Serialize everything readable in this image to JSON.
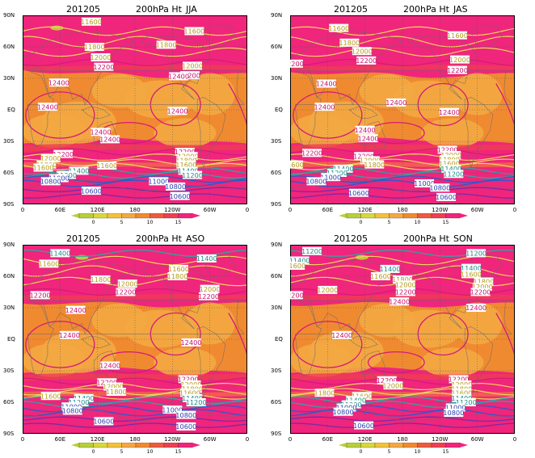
{
  "colors": {
    "bg_pink": "#f0257c",
    "orange": "#f08a30",
    "orange_light": "#f3a843",
    "red": "#ee3f50",
    "yellow_green": "#c9d43a",
    "contour_yellow": "#efd65a",
    "contour_pink": "#d6197a",
    "contour_teal": "#2ca6a4",
    "contour_blue": "#2a5cc9",
    "contour_purple": "#7a2aa6",
    "coast": "#6a6a6a"
  },
  "lat_labels": [
    "90N",
    "60N",
    "30N",
    "EQ",
    "30S",
    "60S",
    "90S"
  ],
  "lon_labels": [
    "0",
    "60E",
    "120E",
    "180",
    "120W",
    "60W",
    "0"
  ],
  "colorbar": {
    "ticks": [
      "0",
      "5",
      "10",
      "15",
      "20"
    ]
  },
  "panels": [
    {
      "date": "201205",
      "variable": "200hPa Ht",
      "season": "JJA",
      "labels": [
        {
          "text": "11600",
          "lon": 110,
          "lat": 84,
          "color": "yellow"
        },
        {
          "text": "11600",
          "lon": 275,
          "lat": 75,
          "color": "yellow"
        },
        {
          "text": "11800",
          "lon": 115,
          "lat": 60,
          "color": "yellow"
        },
        {
          "text": "11800",
          "lon": 230,
          "lat": 62,
          "color": "yellow"
        },
        {
          "text": "12000",
          "lon": 125,
          "lat": 50,
          "color": "yellow"
        },
        {
          "text": "12200",
          "lon": 130,
          "lat": 41,
          "color": "pink"
        },
        {
          "text": "12000",
          "lon": 272,
          "lat": 42,
          "color": "yellow"
        },
        {
          "text": "12200",
          "lon": 268,
          "lat": 33,
          "color": "pink"
        },
        {
          "text": "12400",
          "lon": 250,
          "lat": 32,
          "color": "pink"
        },
        {
          "text": "12400",
          "lon": 58,
          "lat": 26,
          "color": "pink"
        },
        {
          "text": "12400",
          "lon": 40,
          "lat": 3,
          "color": "pink"
        },
        {
          "text": "12400",
          "lon": 248,
          "lat": -1,
          "color": "pink"
        },
        {
          "text": "12400",
          "lon": 125,
          "lat": -21,
          "color": "pink"
        },
        {
          "text": "12400",
          "lon": 140,
          "lat": -28,
          "color": "pink"
        },
        {
          "text": "12200",
          "lon": 65,
          "lat": -42,
          "color": "pink"
        },
        {
          "text": "12000",
          "lon": 45,
          "lat": -46,
          "color": "yellow"
        },
        {
          "text": "11800",
          "lon": 38,
          "lat": -52,
          "color": "yellow"
        },
        {
          "text": "11600",
          "lon": 33,
          "lat": -55,
          "color": "yellow"
        },
        {
          "text": "11400",
          "lon": 90,
          "lat": -58,
          "color": "teal"
        },
        {
          "text": "11200",
          "lon": 70,
          "lat": -62,
          "color": "teal"
        },
        {
          "text": "11000",
          "lon": 58,
          "lat": -65,
          "color": "blue"
        },
        {
          "text": "10800",
          "lon": 45,
          "lat": -68,
          "color": "blue"
        },
        {
          "text": "11600",
          "lon": 135,
          "lat": -53,
          "color": "yellow"
        },
        {
          "text": "12200",
          "lon": 260,
          "lat": -40,
          "color": "pink"
        },
        {
          "text": "12000",
          "lon": 265,
          "lat": -44,
          "color": "yellow"
        },
        {
          "text": "11800",
          "lon": 262,
          "lat": -48,
          "color": "yellow"
        },
        {
          "text": "11600",
          "lon": 262,
          "lat": -52,
          "color": "yellow"
        },
        {
          "text": "11400",
          "lon": 265,
          "lat": -58,
          "color": "teal"
        },
        {
          "text": "11200",
          "lon": 272,
          "lat": -62,
          "color": "teal"
        },
        {
          "text": "11000",
          "lon": 218,
          "lat": -68,
          "color": "blue"
        },
        {
          "text": "10800",
          "lon": 245,
          "lat": -73,
          "color": "blue"
        },
        {
          "text": "10600",
          "lon": 110,
          "lat": -77,
          "color": "blue"
        },
        {
          "text": "10600",
          "lon": 252,
          "lat": -82,
          "color": "blue"
        }
      ]
    },
    {
      "date": "201205",
      "variable": "200hPa Ht",
      "season": "JAS",
      "labels": [
        {
          "text": "11600",
          "lon": 78,
          "lat": 78,
          "color": "yellow"
        },
        {
          "text": "11600",
          "lon": 268,
          "lat": 71,
          "color": "yellow"
        },
        {
          "text": "11800",
          "lon": 95,
          "lat": 64,
          "color": "yellow"
        },
        {
          "text": "12000",
          "lon": 115,
          "lat": 56,
          "color": "yellow"
        },
        {
          "text": "12200",
          "lon": 122,
          "lat": 47,
          "color": "pink"
        },
        {
          "text": "12200",
          "lon": 5,
          "lat": 44,
          "color": "pink"
        },
        {
          "text": "12000",
          "lon": 272,
          "lat": 48,
          "color": "yellow"
        },
        {
          "text": "12200",
          "lon": 268,
          "lat": 38,
          "color": "pink"
        },
        {
          "text": "12400",
          "lon": 58,
          "lat": 25,
          "color": "pink"
        },
        {
          "text": "12400",
          "lon": 170,
          "lat": 7,
          "color": "pink"
        },
        {
          "text": "12400",
          "lon": 55,
          "lat": 3,
          "color": "pink"
        },
        {
          "text": "12400",
          "lon": 255,
          "lat": -2,
          "color": "pink"
        },
        {
          "text": "12400",
          "lon": 120,
          "lat": -19,
          "color": "pink"
        },
        {
          "text": "12400",
          "lon": 125,
          "lat": -27,
          "color": "pink"
        },
        {
          "text": "12200",
          "lon": 35,
          "lat": -41,
          "color": "pink"
        },
        {
          "text": "11600",
          "lon": 5,
          "lat": -52,
          "color": "yellow"
        },
        {
          "text": "12200",
          "lon": 118,
          "lat": -44,
          "color": "pink"
        },
        {
          "text": "12000",
          "lon": 128,
          "lat": -48,
          "color": "yellow"
        },
        {
          "text": "11800",
          "lon": 135,
          "lat": -52,
          "color": "yellow"
        },
        {
          "text": "11400",
          "lon": 85,
          "lat": -56,
          "color": "teal"
        },
        {
          "text": "11200",
          "lon": 75,
          "lat": -60,
          "color": "teal"
        },
        {
          "text": "11000",
          "lon": 65,
          "lat": -64,
          "color": "blue"
        },
        {
          "text": "10800",
          "lon": 42,
          "lat": -68,
          "color": "blue"
        },
        {
          "text": "12200",
          "lon": 252,
          "lat": -38,
          "color": "pink"
        },
        {
          "text": "12000",
          "lon": 258,
          "lat": -43,
          "color": "yellow"
        },
        {
          "text": "11800",
          "lon": 255,
          "lat": -47,
          "color": "yellow"
        },
        {
          "text": "11600",
          "lon": 255,
          "lat": -51,
          "color": "yellow"
        },
        {
          "text": "11400",
          "lon": 258,
          "lat": -56,
          "color": "teal"
        },
        {
          "text": "11200",
          "lon": 262,
          "lat": -61,
          "color": "teal"
        },
        {
          "text": "11000",
          "lon": 215,
          "lat": -70,
          "color": "blue"
        },
        {
          "text": "10800",
          "lon": 240,
          "lat": -74,
          "color": "blue"
        },
        {
          "text": "10600",
          "lon": 110,
          "lat": -79,
          "color": "blue"
        },
        {
          "text": "10600",
          "lon": 250,
          "lat": -83,
          "color": "blue"
        }
      ]
    },
    {
      "date": "201205",
      "variable": "200hPa Ht",
      "season": "ASO",
      "labels": [
        {
          "text": "11400",
          "lon": 60,
          "lat": 82,
          "color": "teal"
        },
        {
          "text": "11400",
          "lon": 295,
          "lat": 77,
          "color": "teal"
        },
        {
          "text": "11600",
          "lon": 42,
          "lat": 72,
          "color": "yellow"
        },
        {
          "text": "11600",
          "lon": 250,
          "lat": 67,
          "color": "yellow"
        },
        {
          "text": "11800",
          "lon": 125,
          "lat": 57,
          "color": "yellow"
        },
        {
          "text": "11800",
          "lon": 248,
          "lat": 60,
          "color": "yellow"
        },
        {
          "text": "12000",
          "lon": 168,
          "lat": 53,
          "color": "yellow"
        },
        {
          "text": "12200",
          "lon": 165,
          "lat": 45,
          "color": "pink"
        },
        {
          "text": "12000",
          "lon": 300,
          "lat": 48,
          "color": "yellow"
        },
        {
          "text": "12200",
          "lon": 298,
          "lat": 41,
          "color": "pink"
        },
        {
          "text": "12200",
          "lon": 28,
          "lat": 42,
          "color": "pink"
        },
        {
          "text": "12400",
          "lon": 85,
          "lat": 28,
          "color": "pink"
        },
        {
          "text": "12400",
          "lon": 75,
          "lat": 4,
          "color": "pink"
        },
        {
          "text": "12400",
          "lon": 270,
          "lat": -3,
          "color": "pink"
        },
        {
          "text": "12400",
          "lon": 140,
          "lat": -25,
          "color": "pink"
        },
        {
          "text": "12200",
          "lon": 135,
          "lat": -41,
          "color": "pink"
        },
        {
          "text": "12000",
          "lon": 145,
          "lat": -45,
          "color": "yellow"
        },
        {
          "text": "11800",
          "lon": 150,
          "lat": -50,
          "color": "yellow"
        },
        {
          "text": "11600",
          "lon": 45,
          "lat": -54,
          "color": "yellow"
        },
        {
          "text": "11400",
          "lon": 98,
          "lat": -56,
          "color": "teal"
        },
        {
          "text": "11200",
          "lon": 90,
          "lat": -60,
          "color": "teal"
        },
        {
          "text": "11000",
          "lon": 78,
          "lat": -64,
          "color": "blue"
        },
        {
          "text": "10800",
          "lon": 80,
          "lat": -68,
          "color": "blue"
        },
        {
          "text": "12200",
          "lon": 265,
          "lat": -38,
          "color": "pink"
        },
        {
          "text": "12000",
          "lon": 270,
          "lat": -43,
          "color": "yellow"
        },
        {
          "text": "11800",
          "lon": 272,
          "lat": -47,
          "color": "yellow"
        },
        {
          "text": "11600",
          "lon": 268,
          "lat": -51,
          "color": "yellow"
        },
        {
          "text": "11400",
          "lon": 272,
          "lat": -56,
          "color": "teal"
        },
        {
          "text": "11200",
          "lon": 278,
          "lat": -60,
          "color": "teal"
        },
        {
          "text": "11000",
          "lon": 240,
          "lat": -67,
          "color": "blue"
        },
        {
          "text": "10800",
          "lon": 262,
          "lat": -72,
          "color": "blue"
        },
        {
          "text": "10600",
          "lon": 130,
          "lat": -78,
          "color": "blue"
        },
        {
          "text": "10600",
          "lon": 262,
          "lat": -83,
          "color": "blue"
        }
      ]
    },
    {
      "date": "201205",
      "variable": "200hPa Ht",
      "season": "SON",
      "labels": [
        {
          "text": "11200",
          "lon": 35,
          "lat": 84,
          "color": "teal"
        },
        {
          "text": "11200",
          "lon": 298,
          "lat": 82,
          "color": "teal"
        },
        {
          "text": "11400",
          "lon": 15,
          "lat": 75,
          "color": "teal"
        },
        {
          "text": "11600",
          "lon": 8,
          "lat": 70,
          "color": "yellow"
        },
        {
          "text": "11400",
          "lon": 160,
          "lat": 67,
          "color": "teal"
        },
        {
          "text": "11400",
          "lon": 290,
          "lat": 68,
          "color": "teal"
        },
        {
          "text": "11600",
          "lon": 145,
          "lat": 60,
          "color": "yellow"
        },
        {
          "text": "11600",
          "lon": 290,
          "lat": 62,
          "color": "yellow"
        },
        {
          "text": "11800",
          "lon": 180,
          "lat": 57,
          "color": "yellow"
        },
        {
          "text": "11800",
          "lon": 310,
          "lat": 55,
          "color": "yellow"
        },
        {
          "text": "12000",
          "lon": 185,
          "lat": 52,
          "color": "yellow"
        },
        {
          "text": "12000",
          "lon": 308,
          "lat": 50,
          "color": "yellow"
        },
        {
          "text": "12200",
          "lon": 185,
          "lat": 45,
          "color": "pink"
        },
        {
          "text": "12200",
          "lon": 305,
          "lat": 45,
          "color": "pink"
        },
        {
          "text": "12000",
          "lon": 60,
          "lat": 47,
          "color": "yellow"
        },
        {
          "text": "12200",
          "lon": 5,
          "lat": 42,
          "color": "pink"
        },
        {
          "text": "12400",
          "lon": 175,
          "lat": 36,
          "color": "pink"
        },
        {
          "text": "12400",
          "lon": 298,
          "lat": 30,
          "color": "pink"
        },
        {
          "text": "12400",
          "lon": 83,
          "lat": 4,
          "color": "pink"
        },
        {
          "text": "12200",
          "lon": 155,
          "lat": -39,
          "color": "pink"
        },
        {
          "text": "12000",
          "lon": 165,
          "lat": -44,
          "color": "yellow"
        },
        {
          "text": "11800",
          "lon": 55,
          "lat": -51,
          "color": "yellow"
        },
        {
          "text": "11600",
          "lon": 115,
          "lat": -54,
          "color": "yellow"
        },
        {
          "text": "11400",
          "lon": 105,
          "lat": -58,
          "color": "teal"
        },
        {
          "text": "11200",
          "lon": 98,
          "lat": -62,
          "color": "teal"
        },
        {
          "text": "11000",
          "lon": 90,
          "lat": -65,
          "color": "blue"
        },
        {
          "text": "10800",
          "lon": 85,
          "lat": -69,
          "color": "blue"
        },
        {
          "text": "12200",
          "lon": 270,
          "lat": -38,
          "color": "pink"
        },
        {
          "text": "12000",
          "lon": 275,
          "lat": -43,
          "color": "yellow"
        },
        {
          "text": "11800",
          "lon": 275,
          "lat": -47,
          "color": "yellow"
        },
        {
          "text": "11600",
          "lon": 275,
          "lat": -51,
          "color": "yellow"
        },
        {
          "text": "11400",
          "lon": 275,
          "lat": -56,
          "color": "teal"
        },
        {
          "text": "11200",
          "lon": 282,
          "lat": -60,
          "color": "teal"
        },
        {
          "text": "11000",
          "lon": 265,
          "lat": -65,
          "color": "blue"
        },
        {
          "text": "10800",
          "lon": 262,
          "lat": -70,
          "color": "blue"
        },
        {
          "text": "10600",
          "lon": 118,
          "lat": -82,
          "color": "blue"
        }
      ]
    }
  ]
}
